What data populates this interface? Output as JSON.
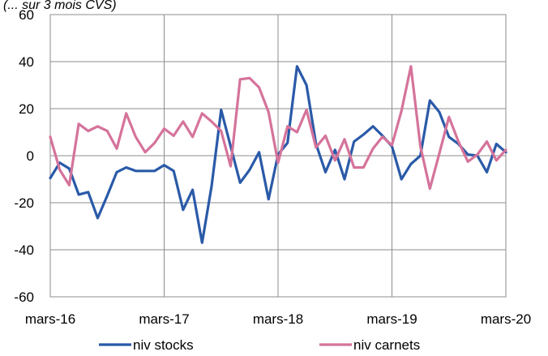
{
  "chart_data": {
    "type": "line",
    "title": "",
    "subtitle": "(... sur 3 mois CVS)",
    "xlabel": "",
    "ylabel": "",
    "ylim": [
      -60,
      60
    ],
    "yticks": [
      -60,
      -40,
      -20,
      0,
      20,
      40,
      60
    ],
    "xtick_labels": [
      "mars-16",
      "mars-17",
      "mars-18",
      "mars-19",
      "mars-20"
    ],
    "grid": true,
    "legend_position": "bottom",
    "series": [
      {
        "name": "niv stocks",
        "color": "#2a5aa8",
        "values": [
          -9.5,
          -3,
          -5.5,
          -16.5,
          -15.5,
          -26.5,
          -17,
          -7,
          -5,
          -6.5,
          -6.5,
          -6.5,
          -4,
          -6.5,
          -23,
          -14.5,
          -37,
          -13,
          19.5,
          4,
          -11.5,
          -6,
          1.5,
          -18.5,
          0.5,
          5.5,
          38,
          30,
          5,
          -7,
          2.5,
          -10,
          6,
          9,
          12.5,
          8.5,
          4,
          -10,
          -3.5,
          0,
          23.5,
          18.5,
          8,
          5,
          0.5,
          0,
          -7,
          5,
          1.5
        ]
      },
      {
        "name": "niv carnets",
        "color": "#d5739b",
        "values": [
          8,
          -6,
          -12.5,
          13.5,
          10.5,
          12.5,
          10.5,
          3,
          18,
          8,
          1.5,
          5.5,
          11.5,
          8.5,
          14.5,
          8,
          18,
          14.5,
          10.5,
          -4.5,
          32.5,
          33,
          29,
          18.5,
          -3,
          12.5,
          10,
          19.5,
          3.5,
          8.5,
          -2,
          7,
          -5,
          -5,
          3,
          8,
          4.5,
          19,
          38,
          4,
          -14,
          1,
          16.5,
          6,
          -2.5,
          0.5,
          6,
          -2,
          2.5
        ]
      }
    ]
  }
}
